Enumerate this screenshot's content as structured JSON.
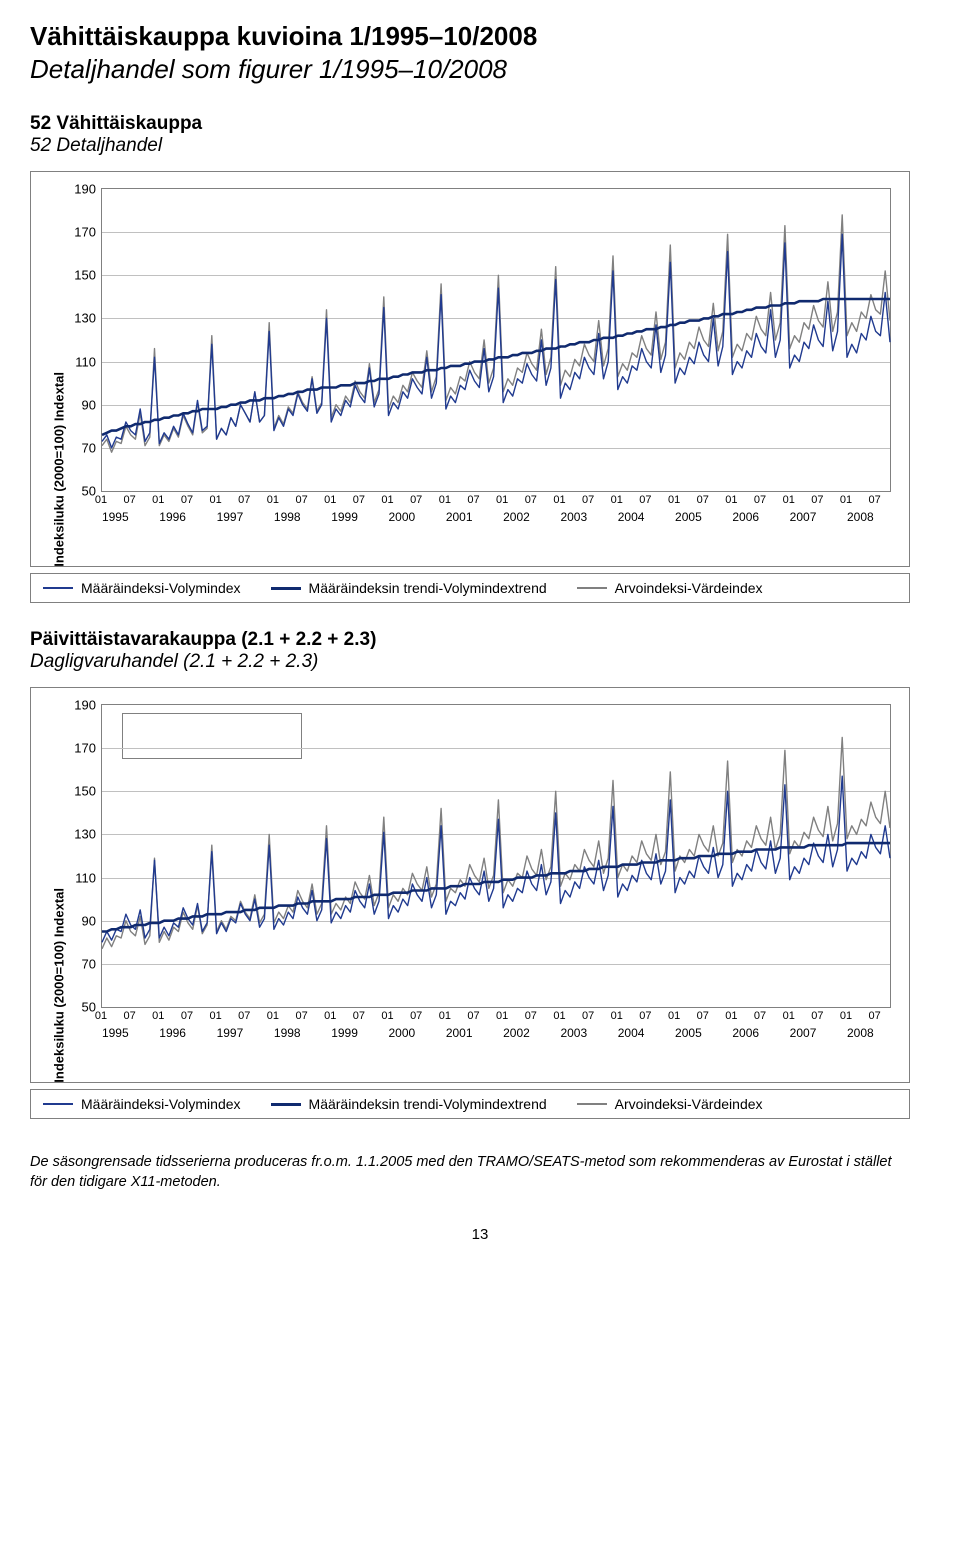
{
  "page": {
    "title_fi": "Vähittäiskauppa kuvioina 1/1995–10/2008",
    "title_sv": "Detaljhandel som figurer 1/1995–10/2008",
    "number": "13"
  },
  "footnote": "De säsongrensade tidsserierna produceras fr.o.m. 1.1.2005 med den TRAMO/SEATS-metod som rekommenderas av Eurostat i stället för den tidigare X11-metoden.",
  "legend": {
    "items": [
      {
        "label": "Määräindeksi-Volymindex",
        "color": "#203a8f",
        "width": 2
      },
      {
        "label": "Määräindeksin trendi-Volymindextrend",
        "color": "#102a6f",
        "width": 3
      },
      {
        "label": "Arvoindeksi-Värdeindex",
        "color": "#808080",
        "width": 2
      }
    ]
  },
  "x_axis": {
    "years": [
      "1995",
      "1996",
      "1997",
      "1998",
      "1999",
      "2000",
      "2001",
      "2002",
      "2003",
      "2004",
      "2005",
      "2006",
      "2007",
      "2008"
    ],
    "minor": [
      "01",
      "07"
    ],
    "label_fontsize": 12
  },
  "chart1": {
    "heading_fi": "52 Vähittäiskauppa",
    "heading_sv": "52 Detaljhandel",
    "type": "line",
    "y_axis": {
      "label": "Indeksiluku (2000=100)  Indextal",
      "min": 50,
      "max": 190,
      "step": 20,
      "ticks": [
        50,
        70,
        90,
        110,
        130,
        150,
        170,
        190
      ],
      "fontsize": 13
    },
    "line_colors": {
      "volume": "#203a8f",
      "trend": "#102a6f",
      "value": "#808080"
    },
    "line_widths": {
      "volume": 1.4,
      "trend": 2.6,
      "value": 1.4
    },
    "grid_color": "#c0c0c0",
    "background_color": "#ffffff",
    "series": {
      "volume": [
        73,
        76,
        70,
        75,
        74,
        82,
        78,
        76,
        88,
        73,
        77,
        112,
        72,
        77,
        74,
        80,
        76,
        86,
        81,
        77,
        92,
        78,
        80,
        118,
        74,
        79,
        76,
        84,
        80,
        90,
        86,
        82,
        96,
        82,
        85,
        124,
        78,
        84,
        80,
        88,
        85,
        95,
        90,
        87,
        102,
        86,
        90,
        130,
        82,
        88,
        85,
        92,
        89,
        99,
        94,
        91,
        107,
        89,
        95,
        135,
        85,
        91,
        88,
        96,
        93,
        102,
        98,
        95,
        112,
        93,
        100,
        141,
        88,
        94,
        91,
        99,
        97,
        106,
        101,
        98,
        116,
        96,
        103,
        144,
        91,
        97,
        94,
        102,
        100,
        109,
        104,
        101,
        120,
        99,
        107,
        148,
        93,
        100,
        97,
        105,
        102,
        112,
        107,
        104,
        123,
        102,
        110,
        152,
        97,
        103,
        100,
        108,
        106,
        116,
        110,
        107,
        127,
        105,
        113,
        156,
        100,
        107,
        104,
        112,
        109,
        119,
        113,
        110,
        130,
        108,
        117,
        161,
        104,
        110,
        107,
        115,
        112,
        123,
        117,
        114,
        134,
        112,
        120,
        165,
        107,
        113,
        110,
        119,
        116,
        127,
        120,
        117,
        138,
        115,
        124,
        169,
        112,
        118,
        114,
        123,
        120,
        131,
        124,
        122,
        142,
        119
      ],
      "trend": [
        76,
        77,
        78,
        78,
        79,
        80,
        80,
        81,
        81,
        82,
        82,
        83,
        83,
        84,
        84,
        85,
        85,
        86,
        86,
        87,
        87,
        88,
        88,
        88,
        88,
        89,
        89,
        90,
        90,
        91,
        91,
        92,
        92,
        92,
        93,
        93,
        93,
        94,
        94,
        95,
        95,
        96,
        96,
        97,
        97,
        97,
        98,
        98,
        98,
        98,
        99,
        99,
        99,
        100,
        100,
        100,
        101,
        101,
        102,
        102,
        102,
        103,
        103,
        104,
        104,
        105,
        105,
        105,
        106,
        106,
        106,
        107,
        107,
        108,
        108,
        108,
        109,
        109,
        110,
        110,
        110,
        111,
        111,
        112,
        112,
        112,
        113,
        113,
        114,
        114,
        114,
        115,
        115,
        116,
        116,
        116,
        117,
        117,
        118,
        118,
        119,
        119,
        119,
        120,
        120,
        121,
        121,
        121,
        122,
        122,
        123,
        123,
        124,
        124,
        125,
        125,
        125,
        126,
        126,
        127,
        127,
        128,
        128,
        129,
        129,
        129,
        130,
        130,
        131,
        131,
        132,
        132,
        132,
        133,
        133,
        134,
        134,
        135,
        135,
        135,
        136,
        136,
        136,
        137,
        137,
        137,
        138,
        138,
        138,
        138,
        138,
        139,
        139,
        139,
        139,
        139,
        139,
        139,
        139,
        139,
        139,
        139,
        139,
        139,
        139,
        139
      ],
      "value": [
        71,
        74,
        68,
        73,
        72,
        80,
        76,
        74,
        86,
        71,
        75,
        116,
        71,
        76,
        73,
        79,
        75,
        85,
        80,
        76,
        91,
        77,
        79,
        122,
        74,
        79,
        76,
        84,
        80,
        90,
        86,
        82,
        96,
        82,
        85,
        128,
        79,
        85,
        81,
        89,
        86,
        96,
        91,
        88,
        103,
        87,
        91,
        134,
        84,
        90,
        87,
        94,
        91,
        101,
        96,
        93,
        109,
        91,
        97,
        140,
        88,
        94,
        91,
        99,
        96,
        105,
        101,
        98,
        115,
        96,
        103,
        146,
        92,
        98,
        95,
        103,
        101,
        110,
        105,
        102,
        120,
        100,
        107,
        150,
        96,
        102,
        99,
        107,
        105,
        114,
        109,
        106,
        125,
        104,
        112,
        154,
        99,
        106,
        103,
        111,
        108,
        118,
        113,
        110,
        129,
        108,
        116,
        159,
        103,
        109,
        106,
        114,
        112,
        122,
        116,
        113,
        133,
        111,
        119,
        164,
        107,
        114,
        111,
        119,
        116,
        126,
        120,
        117,
        137,
        115,
        124,
        169,
        112,
        118,
        115,
        123,
        120,
        131,
        125,
        122,
        142,
        120,
        128,
        173,
        116,
        122,
        119,
        128,
        125,
        136,
        129,
        126,
        147,
        124,
        133,
        178,
        122,
        128,
        124,
        133,
        130,
        141,
        134,
        132,
        152,
        129
      ]
    }
  },
  "chart2": {
    "heading_fi": "Päivittäistavarakauppa (2.1 + 2.2 + 2.3)",
    "heading_sv": "Dagligvaruhandel (2.1 + 2.2 + 2.3)",
    "type": "line",
    "y_axis": {
      "label": "Indeksiluku (2000=100)  Indextal",
      "min": 50,
      "max": 190,
      "step": 20,
      "ticks": [
        50,
        70,
        90,
        110,
        130,
        150,
        170,
        190
      ],
      "fontsize": 13
    },
    "line_colors": {
      "volume": "#203a8f",
      "trend": "#102a6f",
      "value": "#808080"
    },
    "line_widths": {
      "volume": 1.4,
      "trend": 2.6,
      "value": 1.4
    },
    "grid_color": "#c0c0c0",
    "background_color": "#ffffff",
    "legend_box": true,
    "series": {
      "volume": [
        80,
        85,
        81,
        86,
        85,
        93,
        88,
        86,
        95,
        82,
        86,
        118,
        82,
        87,
        83,
        89,
        87,
        96,
        91,
        88,
        98,
        85,
        89,
        122,
        84,
        89,
        85,
        91,
        89,
        98,
        93,
        90,
        100,
        87,
        91,
        125,
        86,
        91,
        88,
        94,
        91,
        101,
        96,
        93,
        104,
        90,
        95,
        128,
        89,
        94,
        91,
        97,
        94,
        104,
        99,
        96,
        107,
        93,
        99,
        131,
        91,
        97,
        94,
        100,
        97,
        107,
        102,
        99,
        110,
        96,
        102,
        134,
        93,
        99,
        97,
        103,
        100,
        110,
        105,
        102,
        113,
        99,
        105,
        137,
        96,
        102,
        99,
        105,
        103,
        113,
        107,
        104,
        116,
        102,
        108,
        140,
        98,
        104,
        101,
        108,
        105,
        115,
        110,
        107,
        118,
        104,
        111,
        143,
        101,
        107,
        104,
        111,
        108,
        118,
        112,
        109,
        121,
        107,
        113,
        146,
        103,
        110,
        107,
        113,
        110,
        120,
        115,
        112,
        124,
        110,
        116,
        150,
        106,
        112,
        109,
        116,
        113,
        123,
        117,
        114,
        127,
        112,
        119,
        153,
        109,
        115,
        112,
        119,
        116,
        126,
        120,
        117,
        130,
        115,
        123,
        157,
        113,
        119,
        116,
        122,
        119,
        130,
        124,
        121,
        134,
        119
      ],
      "trend": [
        85,
        85,
        86,
        86,
        87,
        87,
        87,
        88,
        88,
        88,
        89,
        89,
        89,
        90,
        90,
        90,
        91,
        91,
        91,
        92,
        92,
        92,
        93,
        93,
        93,
        93,
        94,
        94,
        94,
        94,
        95,
        95,
        95,
        96,
        96,
        96,
        96,
        97,
        97,
        97,
        97,
        98,
        98,
        98,
        99,
        99,
        99,
        99,
        99,
        100,
        100,
        100,
        100,
        101,
        101,
        101,
        101,
        102,
        102,
        102,
        102,
        103,
        103,
        103,
        103,
        104,
        104,
        104,
        104,
        105,
        105,
        105,
        105,
        106,
        106,
        106,
        107,
        107,
        107,
        107,
        108,
        108,
        108,
        108,
        109,
        109,
        109,
        110,
        110,
        110,
        110,
        111,
        111,
        111,
        112,
        112,
        112,
        112,
        113,
        113,
        113,
        113,
        114,
        114,
        114,
        115,
        115,
        115,
        115,
        116,
        116,
        116,
        116,
        117,
        117,
        117,
        117,
        118,
        118,
        118,
        118,
        119,
        119,
        119,
        119,
        120,
        120,
        120,
        120,
        121,
        121,
        121,
        121,
        122,
        122,
        122,
        122,
        123,
        123,
        123,
        123,
        123,
        124,
        124,
        124,
        124,
        124,
        124,
        125,
        125,
        125,
        125,
        125,
        125,
        125,
        125,
        126,
        126,
        126,
        126,
        126,
        126,
        126,
        126,
        126,
        126
      ],
      "value": [
        77,
        82,
        78,
        83,
        82,
        90,
        85,
        83,
        92,
        79,
        83,
        119,
        80,
        85,
        81,
        87,
        85,
        94,
        89,
        86,
        97,
        84,
        88,
        125,
        85,
        90,
        86,
        92,
        90,
        99,
        94,
        91,
        102,
        89,
        93,
        130,
        89,
        94,
        91,
        97,
        94,
        104,
        99,
        96,
        107,
        93,
        98,
        134,
        93,
        98,
        95,
        101,
        98,
        108,
        103,
        100,
        111,
        97,
        103,
        138,
        96,
        102,
        99,
        105,
        102,
        112,
        107,
        104,
        115,
        101,
        107,
        142,
        99,
        105,
        103,
        109,
        106,
        116,
        111,
        108,
        119,
        105,
        111,
        146,
        103,
        109,
        106,
        112,
        110,
        120,
        114,
        111,
        123,
        109,
        115,
        150,
        106,
        112,
        109,
        116,
        113,
        123,
        118,
        115,
        127,
        112,
        119,
        155,
        110,
        116,
        113,
        120,
        117,
        127,
        121,
        118,
        130,
        116,
        122,
        159,
        113,
        120,
        117,
        123,
        120,
        130,
        125,
        122,
        134,
        120,
        126,
        164,
        117,
        123,
        120,
        127,
        124,
        134,
        128,
        125,
        138,
        123,
        130,
        169,
        121,
        127,
        124,
        131,
        128,
        138,
        132,
        129,
        143,
        127,
        135,
        175,
        128,
        134,
        130,
        137,
        134,
        145,
        138,
        135,
        150,
        133
      ]
    }
  }
}
